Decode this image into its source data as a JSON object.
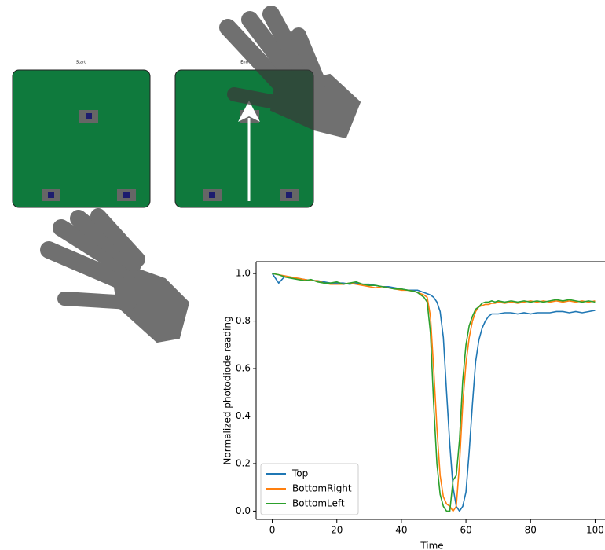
{
  "panels": {
    "start_label": "Start",
    "end_label": "End"
  },
  "chart_data": {
    "type": "line",
    "xlabel": "Time",
    "ylabel": "Normalized photodiode reading",
    "x": [
      0,
      2,
      4,
      6,
      8,
      10,
      12,
      14,
      16,
      18,
      20,
      22,
      24,
      26,
      28,
      30,
      32,
      34,
      36,
      38,
      40,
      42,
      44,
      45,
      46,
      47,
      48,
      49,
      50,
      51,
      52,
      53,
      54,
      55,
      56,
      57,
      58,
      59,
      60,
      61,
      62,
      63,
      64,
      65,
      66,
      67,
      68,
      69,
      70,
      72,
      74,
      76,
      78,
      80,
      82,
      84,
      86,
      88,
      90,
      92,
      94,
      96,
      98,
      100
    ],
    "series": [
      {
        "name": "Top",
        "color": "#1f77b4",
        "values": [
          1.0,
          0.96,
          0.99,
          0.98,
          0.98,
          0.975,
          0.97,
          0.97,
          0.965,
          0.96,
          0.96,
          0.96,
          0.955,
          0.96,
          0.955,
          0.955,
          0.95,
          0.945,
          0.945,
          0.94,
          0.935,
          0.93,
          0.93,
          0.93,
          0.925,
          0.92,
          0.915,
          0.91,
          0.9,
          0.88,
          0.84,
          0.73,
          0.5,
          0.28,
          0.1,
          0.02,
          0.0,
          0.02,
          0.08,
          0.25,
          0.45,
          0.63,
          0.72,
          0.77,
          0.8,
          0.82,
          0.83,
          0.83,
          0.83,
          0.835,
          0.835,
          0.83,
          0.835,
          0.83,
          0.835,
          0.835,
          0.835,
          0.84,
          0.84,
          0.835,
          0.84,
          0.835,
          0.84,
          0.845
        ]
      },
      {
        "name": "BottomRight",
        "color": "#ff7f0e",
        "values": [
          1.0,
          0.995,
          0.99,
          0.985,
          0.98,
          0.975,
          0.97,
          0.97,
          0.96,
          0.955,
          0.955,
          0.955,
          0.96,
          0.955,
          0.95,
          0.945,
          0.94,
          0.945,
          0.94,
          0.935,
          0.93,
          0.93,
          0.925,
          0.92,
          0.915,
          0.91,
          0.9,
          0.82,
          0.6,
          0.35,
          0.15,
          0.06,
          0.03,
          0.02,
          0.0,
          0.02,
          0.2,
          0.45,
          0.62,
          0.73,
          0.8,
          0.84,
          0.86,
          0.865,
          0.87,
          0.87,
          0.875,
          0.875,
          0.88,
          0.875,
          0.88,
          0.875,
          0.88,
          0.885,
          0.88,
          0.885,
          0.88,
          0.885,
          0.88,
          0.885,
          0.88,
          0.885,
          0.88,
          0.885
        ]
      },
      {
        "name": "BottomLeft",
        "color": "#2ca02c",
        "values": [
          1.0,
          0.995,
          0.985,
          0.98,
          0.975,
          0.97,
          0.975,
          0.965,
          0.96,
          0.96,
          0.965,
          0.955,
          0.96,
          0.965,
          0.955,
          0.95,
          0.95,
          0.945,
          0.94,
          0.935,
          0.935,
          0.93,
          0.925,
          0.92,
          0.91,
          0.9,
          0.88,
          0.75,
          0.45,
          0.2,
          0.07,
          0.02,
          0.0,
          0.0,
          0.13,
          0.15,
          0.3,
          0.55,
          0.7,
          0.78,
          0.82,
          0.85,
          0.86,
          0.875,
          0.88,
          0.88,
          0.885,
          0.88,
          0.885,
          0.88,
          0.885,
          0.88,
          0.885,
          0.88,
          0.885,
          0.88,
          0.885,
          0.89,
          0.885,
          0.89,
          0.885,
          0.88,
          0.885,
          0.88
        ]
      }
    ],
    "xlim": [
      -5,
      105
    ],
    "ylim": [
      -0.035,
      1.05
    ],
    "xticks": [
      0,
      20,
      40,
      60,
      80,
      100
    ],
    "yticks": [
      {
        "value": 0,
        "label": "0.0"
      },
      0.2,
      0.4,
      0.6,
      0.8,
      {
        "value": 1,
        "label": "1.0"
      }
    ],
    "legend": "lower left"
  }
}
